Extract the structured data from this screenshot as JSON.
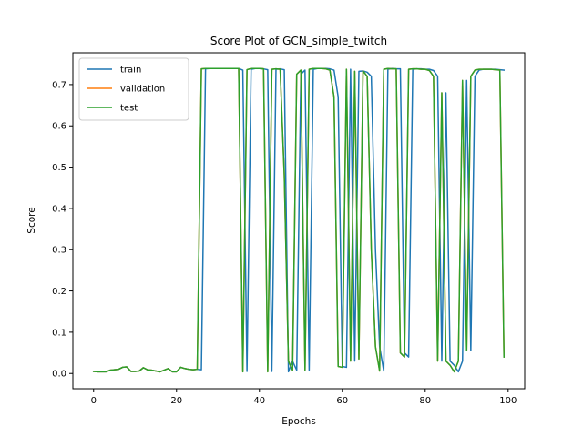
{
  "chart_data": {
    "type": "line",
    "title": "Score Plot of GCN_simple_twitch",
    "xlabel": "Epochs",
    "ylabel": "Score",
    "xlim": [
      -5,
      104
    ],
    "ylim": [
      -0.037,
      0.777
    ],
    "xticks": [
      0,
      20,
      40,
      60,
      80,
      100
    ],
    "yticks": [
      0.0,
      0.1,
      0.2,
      0.3,
      0.4,
      0.5,
      0.6,
      0.7
    ],
    "ytick_labels": [
      "0.0",
      "0.1",
      "0.2",
      "0.3",
      "0.4",
      "0.5",
      "0.6",
      "0.7"
    ],
    "grid": false,
    "legend_position": "top-left",
    "x": [
      0,
      1,
      2,
      3,
      4,
      5,
      6,
      7,
      8,
      9,
      10,
      11,
      12,
      13,
      14,
      15,
      16,
      17,
      18,
      19,
      20,
      21,
      22,
      23,
      24,
      25,
      26,
      27,
      28,
      29,
      30,
      31,
      32,
      33,
      34,
      35,
      36,
      37,
      38,
      39,
      40,
      41,
      42,
      43,
      44,
      45,
      46,
      47,
      48,
      49,
      50,
      51,
      52,
      53,
      54,
      55,
      56,
      57,
      58,
      59,
      60,
      61,
      62,
      63,
      64,
      65,
      66,
      67,
      68,
      69,
      70,
      71,
      72,
      73,
      74,
      75,
      76,
      77,
      78,
      79,
      80,
      81,
      82,
      83,
      84,
      85,
      86,
      87,
      88,
      89,
      90,
      91,
      92,
      93,
      94,
      95,
      96,
      97,
      98,
      99
    ],
    "series": [
      {
        "name": "train",
        "color": "#1f77b4",
        "values": [
          0.005,
          0.004,
          0.004,
          0.004,
          0.008,
          0.009,
          0.01,
          0.015,
          0.016,
          0.005,
          0.005,
          0.006,
          0.014,
          0.009,
          0.008,
          0.006,
          0.004,
          0.008,
          0.012,
          0.004,
          0.004,
          0.015,
          0.012,
          0.01,
          0.009,
          0.01,
          0.009,
          0.738,
          0.739,
          0.739,
          0.739,
          0.739,
          0.739,
          0.739,
          0.739,
          0.739,
          0.735,
          0.005,
          0.737,
          0.739,
          0.739,
          0.738,
          0.736,
          0.005,
          0.737,
          0.738,
          0.736,
          0.004,
          0.03,
          0.008,
          0.725,
          0.735,
          0.008,
          0.737,
          0.739,
          0.739,
          0.739,
          0.738,
          0.735,
          0.67,
          0.017,
          0.015,
          0.737,
          0.03,
          0.732,
          0.733,
          0.73,
          0.72,
          0.3,
          0.065,
          0.006,
          0.737,
          0.739,
          0.738,
          0.738,
          0.05,
          0.04,
          0.737,
          0.738,
          0.738,
          0.737,
          0.737,
          0.734,
          0.72,
          0.03,
          0.68,
          0.03,
          0.02,
          0.004,
          0.03,
          0.71,
          0.055,
          0.72,
          0.735,
          0.737,
          0.737,
          0.737,
          0.737,
          0.736,
          0.735
        ],
        "drawn": true
      },
      {
        "name": "validation",
        "color": "#ff7f0e",
        "values": [
          0.005,
          0.004,
          0.004,
          0.004,
          0.008,
          0.009,
          0.01,
          0.015,
          0.016,
          0.005,
          0.005,
          0.006,
          0.014,
          0.009,
          0.008,
          0.006,
          0.004,
          0.008,
          0.012,
          0.004,
          0.004,
          0.015,
          0.012,
          0.01,
          0.009,
          0.01,
          0.738,
          0.739,
          0.739,
          0.739,
          0.739,
          0.739,
          0.739,
          0.739,
          0.739,
          0.739,
          0.004,
          0.736,
          0.739,
          0.739,
          0.739,
          0.738,
          0.004,
          0.737,
          0.738,
          0.737,
          0.48,
          0.03,
          0.008,
          0.725,
          0.735,
          0.008,
          0.737,
          0.739,
          0.739,
          0.739,
          0.738,
          0.735,
          0.67,
          0.017,
          0.015,
          0.737,
          0.03,
          0.732,
          0.035,
          0.733,
          0.72,
          0.3,
          0.065,
          0.006,
          0.737,
          0.739,
          0.738,
          0.738,
          0.05,
          0.04,
          0.737,
          0.738,
          0.738,
          0.737,
          0.737,
          0.734,
          0.72,
          0.03,
          0.68,
          0.03,
          0.02,
          0.004,
          0.03,
          0.71,
          0.055,
          0.72,
          0.735,
          0.737,
          0.737,
          0.737,
          0.737,
          0.736,
          0.735,
          0.04
        ],
        "drawn": true
      },
      {
        "name": "test",
        "color": "#2ca02c",
        "values": [
          0.005,
          0.004,
          0.004,
          0.004,
          0.008,
          0.009,
          0.01,
          0.015,
          0.016,
          0.005,
          0.005,
          0.006,
          0.014,
          0.009,
          0.008,
          0.006,
          0.004,
          0.008,
          0.012,
          0.004,
          0.004,
          0.015,
          0.012,
          0.01,
          0.009,
          0.01,
          0.738,
          0.739,
          0.739,
          0.739,
          0.739,
          0.739,
          0.739,
          0.739,
          0.739,
          0.739,
          0.004,
          0.736,
          0.739,
          0.739,
          0.739,
          0.738,
          0.004,
          0.737,
          0.738,
          0.737,
          0.48,
          0.03,
          0.008,
          0.725,
          0.735,
          0.008,
          0.737,
          0.739,
          0.739,
          0.739,
          0.738,
          0.735,
          0.67,
          0.017,
          0.015,
          0.737,
          0.03,
          0.732,
          0.035,
          0.733,
          0.72,
          0.3,
          0.065,
          0.006,
          0.737,
          0.739,
          0.738,
          0.738,
          0.05,
          0.04,
          0.737,
          0.738,
          0.738,
          0.737,
          0.737,
          0.734,
          0.72,
          0.03,
          0.68,
          0.03,
          0.02,
          0.004,
          0.03,
          0.71,
          0.055,
          0.72,
          0.735,
          0.737,
          0.737,
          0.737,
          0.737,
          0.736,
          0.735,
          0.04
        ],
        "drawn": true
      }
    ]
  }
}
